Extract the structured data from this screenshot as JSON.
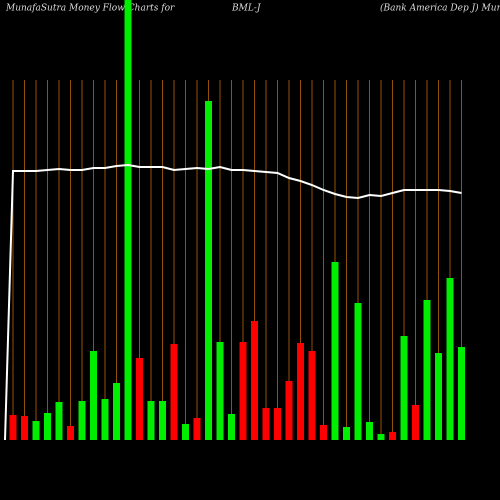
{
  "chart_data": {
    "type": "bar",
    "title": "MunafaSutra  Money Flow  Charts for",
    "symbol": "BML-J",
    "subtitle": "(Bank America  Dep J) MunafaSutra.com",
    "values": [
      25,
      24,
      19,
      27,
      38,
      14,
      39,
      89,
      41,
      57,
      450,
      82,
      39,
      39,
      96,
      16,
      22,
      339,
      98,
      26,
      98,
      119,
      32,
      32,
      59,
      97,
      89,
      15,
      178,
      13,
      137,
      18,
      6,
      8,
      104,
      35,
      140,
      87,
      162,
      93
    ],
    "bar_colors": [
      "#ff0000",
      "#ff0000",
      "#00ee00",
      "#00ee00",
      "#00ee00",
      "#ff0000",
      "#00ee00",
      "#00ee00",
      "#00ee00",
      "#00ee00",
      "#00ee00",
      "#ff0000",
      "#00ee00",
      "#00ee00",
      "#ff0000",
      "#00ee00",
      "#ff0000",
      "#00ee00",
      "#00ee00",
      "#00ee00",
      "#ff0000",
      "#ff0000",
      "#ff0000",
      "#ff0000",
      "#ff0000",
      "#ff0000",
      "#ff0000",
      "#ff0000",
      "#00ee00",
      "#00ee00",
      "#00ee00",
      "#00ee00",
      "#00ee00",
      "#ff0000",
      "#00ee00",
      "#ff0000",
      "#00ee00",
      "#00ee00",
      "#00ee00",
      "#00ee00"
    ],
    "line": {
      "color": "#ffffff",
      "values": [
        269,
        269,
        269,
        270,
        271,
        270,
        270,
        272,
        272,
        274,
        275,
        273,
        273,
        273,
        270,
        271,
        272,
        271,
        273,
        270,
        270,
        269,
        268,
        267,
        262,
        259,
        255,
        250,
        246,
        243,
        242,
        245,
        244,
        247,
        250,
        250,
        250,
        250,
        249,
        247
      ]
    },
    "ylim": [
      0,
      440
    ],
    "grid_color": "#b8660b"
  }
}
